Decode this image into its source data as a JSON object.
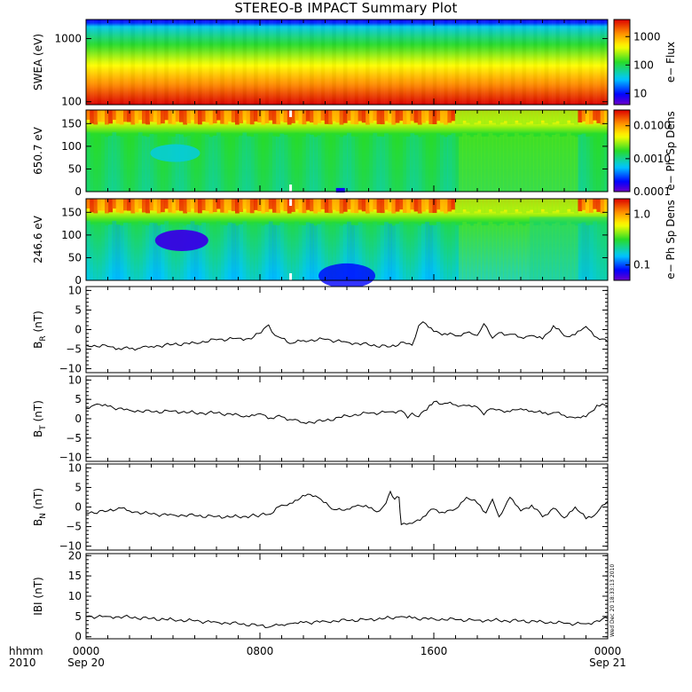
{
  "title": "STEREO-B IMPACT Summary Plot",
  "colors": {
    "axis": "#000000",
    "line": "#000000",
    "background": "#ffffff"
  },
  "time_axis": {
    "corner_top": "hhmm",
    "corner_bottom": "2010",
    "range_hours": [
      0,
      24
    ],
    "ticks": [
      {
        "hour": 0,
        "label": "0000",
        "sublabel": "Sep 20"
      },
      {
        "hour": 8,
        "label": "0800",
        "sublabel": ""
      },
      {
        "hour": 16,
        "label": "1600",
        "sublabel": ""
      },
      {
        "hour": 24,
        "label": "0000",
        "sublabel": "Sep 21"
      }
    ]
  },
  "timestamp": "Wed Dec 20 18:33:13 2010",
  "chart_data": [
    {
      "type": "heatmap",
      "ylabel": "SWEA (eV)",
      "y_scale": "log",
      "ylim": [
        90,
        2000
      ],
      "yticks": [
        {
          "v": 100,
          "label": "100"
        },
        {
          "v": 1000,
          "label": "1000"
        }
      ],
      "colorbar": {
        "label": "e− Flux",
        "scale": "log",
        "range": [
          4,
          4000
        ],
        "ticks": [
          {
            "v": 10,
            "label": "10"
          },
          {
            "v": 100,
            "label": "100"
          },
          {
            "v": 1000,
            "label": "1000"
          }
        ]
      },
      "description": "Flux highest at low energies (~100 eV, red) decreasing toward ~2000 eV (blue), steady through the day"
    },
    {
      "type": "heatmap",
      "ylabel": "650.7 eV",
      "ylim": [
        0,
        180
      ],
      "yticks": [
        {
          "v": 0,
          "label": "0"
        },
        {
          "v": 50,
          "label": "50"
        },
        {
          "v": 100,
          "label": "100"
        },
        {
          "v": 150,
          "label": "150"
        }
      ],
      "colorbar": {
        "label": "e− Ph Sp Dens",
        "scale": "log",
        "range": [
          0.0001,
          0.03
        ],
        "ticks": [
          {
            "v": 0.0001,
            "label": "0.0001"
          },
          {
            "v": 0.001,
            "label": "0.0010"
          },
          {
            "v": 0.01,
            "label": "0.0100"
          }
        ]
      },
      "description": "Strong field-aligned strahl near 150-180 deg pitch angle (red/orange), green elsewhere"
    },
    {
      "type": "heatmap",
      "ylabel": "246.6 eV",
      "ylim": [
        0,
        180
      ],
      "yticks": [
        {
          "v": 0,
          "label": "0"
        },
        {
          "v": 50,
          "label": "50"
        },
        {
          "v": 100,
          "label": "100"
        },
        {
          "v": 150,
          "label": "150"
        }
      ],
      "colorbar": {
        "label": "e− Ph Sp Dens",
        "scale": "log",
        "range": [
          0.05,
          2.0
        ],
        "ticks": [
          {
            "v": 0.1,
            "label": "0.1"
          },
          {
            "v": 1.0,
            "label": "1.0"
          }
        ]
      },
      "description": "Strahl near 150-180 deg, cyan/blue depletion near 90 deg around 03-05h"
    },
    {
      "type": "line",
      "ylabel": "B_R (nT)",
      "ylabel_main": "B",
      "ylabel_sub": "R",
      "ylabel_unit": " (nT)",
      "ylim": [
        -11,
        11
      ],
      "yticks": [
        {
          "v": -10,
          "label": "−10"
        },
        {
          "v": -5,
          "label": "−5"
        },
        {
          "v": 0,
          "label": "0"
        },
        {
          "v": 5,
          "label": "5"
        },
        {
          "v": 10,
          "label": "10"
        }
      ],
      "x": [
        0,
        1,
        1.5,
        2,
        2.5,
        3,
        4,
        5,
        6,
        7,
        7.6,
        8.4,
        8.7,
        9,
        9.5,
        10,
        11,
        12,
        13,
        14,
        14.6,
        15,
        15.3,
        15.5,
        16,
        16.5,
        17,
        17.5,
        18,
        18.3,
        18.7,
        19,
        19.5,
        20,
        20.5,
        21,
        21.5,
        22,
        22.5,
        23,
        23.5,
        24
      ],
      "values": [
        -4,
        -4.3,
        -4.8,
        -4.9,
        -4.7,
        -4.3,
        -3.8,
        -3.4,
        -2.6,
        -2.2,
        -2.4,
        1.2,
        -1.5,
        -2.2,
        -3.5,
        -2.8,
        -2.5,
        -3.2,
        -3.9,
        -4.4,
        -3.2,
        -4.0,
        1.0,
        2.0,
        -0.5,
        -1.0,
        -1.6,
        -0.8,
        -1.5,
        1.5,
        -2.2,
        -0.8,
        -1.2,
        -2.0,
        -1.5,
        -2.4,
        1.0,
        -1.6,
        -1.3,
        0.8,
        -2.0,
        -3.2
      ]
    },
    {
      "type": "line",
      "ylabel": "B_T (nT)",
      "ylabel_main": "B",
      "ylabel_sub": "T",
      "ylabel_unit": " (nT)",
      "ylim": [
        -11,
        11
      ],
      "yticks": [
        {
          "v": -10,
          "label": "−10"
        },
        {
          "v": -5,
          "label": "−5"
        },
        {
          "v": 0,
          "label": "0"
        },
        {
          "v": 5,
          "label": "5"
        },
        {
          "v": 10,
          "label": "10"
        }
      ],
      "x": [
        0,
        0.5,
        1,
        2,
        3,
        4,
        5,
        6,
        7,
        7.5,
        8,
        8.5,
        9,
        9.5,
        10,
        11,
        12,
        13,
        14,
        14.5,
        14.8,
        15,
        15.3,
        15.8,
        16,
        16.5,
        17,
        17.5,
        18,
        18.3,
        18.6,
        19,
        19.5,
        20,
        20.5,
        21,
        21.5,
        22,
        22.5,
        23,
        23.5,
        24
      ],
      "values": [
        2.7,
        3.8,
        3.2,
        2.2,
        1.8,
        2.0,
        1.5,
        1.5,
        1.0,
        0.5,
        1.3,
        0.2,
        0.5,
        -0.3,
        -1.0,
        -0.5,
        0.8,
        1.4,
        1.8,
        2.1,
        0.2,
        1.5,
        0.5,
        3.5,
        4.4,
        4.0,
        3.6,
        3.4,
        3.0,
        1.0,
        2.6,
        2.4,
        1.8,
        2.6,
        2.0,
        1.4,
        1.6,
        0.9,
        0.2,
        0.5,
        3.5,
        3.2
      ]
    },
    {
      "type": "line",
      "ylabel": "B_N (nT)",
      "ylabel_main": "B",
      "ylabel_sub": "N",
      "ylabel_unit": " (nT)",
      "ylim": [
        -11,
        11
      ],
      "yticks": [
        {
          "v": -10,
          "label": "−10"
        },
        {
          "v": -5,
          "label": "−5"
        },
        {
          "v": 0,
          "label": "0"
        },
        {
          "v": 5,
          "label": "5"
        },
        {
          "v": 10,
          "label": "10"
        }
      ],
      "x": [
        0,
        1,
        1.5,
        2,
        3,
        4,
        5,
        6,
        7,
        7.8,
        8.5,
        9,
        9.5,
        10.2,
        10.8,
        11.3,
        12,
        12.5,
        13,
        13.5,
        13.8,
        14,
        14.2,
        14.4,
        14.5,
        15,
        15.5,
        16,
        16.5,
        17,
        17.5,
        18,
        18.4,
        18.7,
        19,
        19.5,
        20,
        20.5,
        21,
        21.5,
        22,
        22.5,
        23,
        23.5,
        24
      ],
      "values": [
        -1.5,
        -1.0,
        -0.2,
        -1.0,
        -1.8,
        -2.0,
        -2.2,
        -2.4,
        -2.5,
        -2.2,
        -1.8,
        0.5,
        1.0,
        3.3,
        2.0,
        -0.5,
        -0.5,
        0.5,
        -0.2,
        -1.0,
        1.0,
        4.0,
        2.0,
        2.5,
        -4.5,
        -4.2,
        -2.5,
        -0.5,
        -1.5,
        -0.5,
        2.5,
        1.0,
        -1.5,
        2.0,
        -2.5,
        2.5,
        -1.0,
        0.5,
        -2.5,
        -0.3,
        -2.8,
        0.0,
        -3.0,
        -1.5,
        1.5
      ]
    },
    {
      "type": "line",
      "ylabel": "|B| (nT)",
      "ylabel_main": "IBI",
      "ylabel_sub": "",
      "ylabel_unit": " (nT)",
      "ylim": [
        -0.5,
        20.5
      ],
      "yticks": [
        {
          "v": 0,
          "label": "0"
        },
        {
          "v": 5,
          "label": "5"
        },
        {
          "v": 10,
          "label": "10"
        },
        {
          "v": 15,
          "label": "15"
        },
        {
          "v": 20,
          "label": "20"
        }
      ],
      "x": [
        0,
        1,
        2,
        3,
        4,
        5,
        6,
        7,
        8,
        8.5,
        9,
        9.5,
        10,
        11,
        12,
        13,
        14,
        14.5,
        15,
        16,
        17,
        18,
        19,
        20,
        21,
        22,
        23,
        24
      ],
      "values": [
        5.0,
        5.0,
        4.8,
        4.5,
        4.2,
        3.9,
        3.6,
        3.2,
        2.8,
        2.5,
        3.0,
        3.3,
        3.5,
        3.8,
        4.0,
        4.3,
        4.6,
        5.0,
        4.6,
        4.4,
        4.2,
        4.1,
        4.0,
        3.9,
        3.7,
        3.3,
        3.2,
        4.5
      ]
    }
  ]
}
